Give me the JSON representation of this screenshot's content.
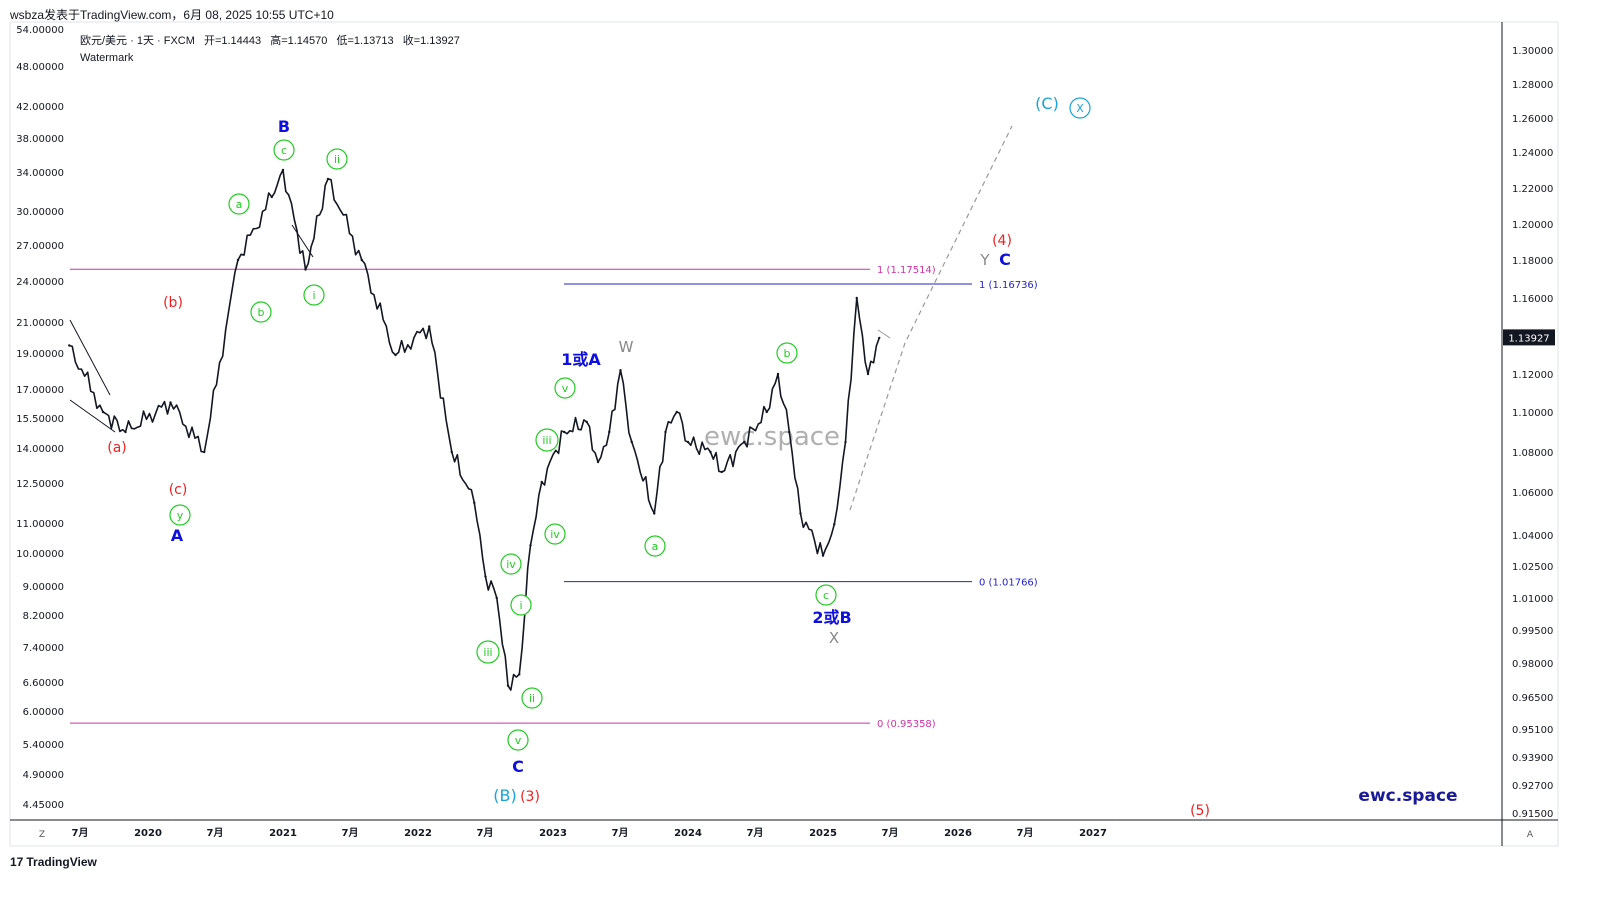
{
  "header": {
    "publisher": "wsbza发表于TradingView.com，6月 08, 2025 10:55 UTC+10"
  },
  "legend": {
    "symbol": "欧元/美元 · 1天 · FXCM",
    "open": "开=1.14443",
    "high": "高=1.14570",
    "low": "低=1.13713",
    "close": "收=1.13927",
    "study": "Watermark"
  },
  "watermark": "ewc.space",
  "brand": "ewc.space",
  "footer": {
    "logo": "17",
    "text": "TradingView"
  },
  "price_label": "1.13927",
  "colors": {
    "candle": "#131722",
    "magenta_line": "#cc33aa",
    "blue_line": "#2222cc",
    "green_wave": "#22cc22",
    "red_wave": "#ee2222",
    "blue_wave": "#1010dd",
    "cyan_wave": "#1aa3d6",
    "gray_wave": "#888888"
  },
  "chart_data": {
    "type": "line",
    "title": "欧元/美元 · 1天 · FXCM",
    "left_axis_ticks": [
      "54.00000",
      "48.00000",
      "42.00000",
      "38.00000",
      "34.00000",
      "30.00000",
      "27.00000",
      "24.00000",
      "21.00000",
      "19.00000",
      "17.00000",
      "15.50000",
      "14.00000",
      "12.50000",
      "11.00000",
      "10.00000",
      "9.00000",
      "8.20000",
      "7.40000",
      "6.60000",
      "6.00000",
      "5.40000",
      "4.90000",
      "4.45000"
    ],
    "right_axis_ticks": [
      "1.30000",
      "1.28000",
      "1.26000",
      "1.24000",
      "1.22000",
      "1.20000",
      "1.18000",
      "1.16000",
      "1.14000",
      "1.12000",
      "1.10000",
      "1.08000",
      "1.06000",
      "1.04000",
      "1.02500",
      "1.01000",
      "0.99500",
      "0.98000",
      "0.96500",
      "0.95100",
      "0.93900",
      "0.92700",
      "0.91500"
    ],
    "x_ticks": [
      "7月",
      "2020",
      "7月",
      "2021",
      "7月",
      "2022",
      "7月",
      "2023",
      "7月",
      "2024",
      "7月",
      "2025",
      "7月",
      "2026",
      "7月",
      "2027"
    ],
    "x_ticks_bold": [
      "2020",
      "2021",
      "2022",
      "2023",
      "2024",
      "2025",
      "2026",
      "2027"
    ],
    "last_close": 1.13927,
    "price_series_approx": {
      "x": [
        "2019-06",
        "2019-09",
        "2019-11",
        "2020-03",
        "2020-06",
        "2020-09",
        "2020-12",
        "2021-01",
        "2021-03",
        "2021-05",
        "2021-08",
        "2021-11",
        "2022-02",
        "2022-04",
        "2022-06",
        "2022-07",
        "2022-08",
        "2022-09",
        "2022-10",
        "2022-11",
        "2022-12",
        "2023-02",
        "2023-04",
        "2023-05",
        "2023-06",
        "2023-07",
        "2023-08",
        "2023-10",
        "2023-11",
        "2023-12",
        "2024-01",
        "2024-03",
        "2024-04",
        "2024-06",
        "2024-08",
        "2024-09",
        "2024-10",
        "2024-11",
        "2025-01",
        "2025-02",
        "2025-03",
        "2025-04",
        "2025-05",
        "2025-06"
      ],
      "y": [
        1.135,
        1.1,
        1.09,
        1.105,
        1.08,
        1.18,
        1.215,
        1.23,
        1.175,
        1.225,
        1.18,
        1.13,
        1.145,
        1.08,
        1.055,
        1.02,
        1.01,
        0.97,
        0.975,
        1.035,
        1.065,
        1.09,
        1.095,
        1.075,
        1.09,
        1.122,
        1.085,
        1.05,
        1.09,
        1.1,
        1.085,
        1.08,
        1.07,
        1.085,
        1.1,
        1.12,
        1.09,
        1.05,
        1.03,
        1.045,
        1.085,
        1.16,
        1.12,
        1.139
      ]
    },
    "horizontal_levels": [
      {
        "label": "1 (1.17514)",
        "value": 1.17514,
        "color": "#cc33aa"
      },
      {
        "label": "1 (1.16736)",
        "value": 1.16736,
        "color": "#2222cc"
      },
      {
        "label": "0 (1.01766)",
        "value": 1.01766,
        "color": "#2222cc"
      },
      {
        "label": "0 (0.95358)",
        "value": 0.95358,
        "color": "#cc33aa"
      }
    ],
    "wave_labels": [
      {
        "text": "(a)",
        "color": "red"
      },
      {
        "text": "(b)",
        "color": "red"
      },
      {
        "text": "(c)",
        "color": "red"
      },
      {
        "text": "y",
        "color": "green",
        "circle": true
      },
      {
        "text": "A",
        "color": "blue"
      },
      {
        "text": "a",
        "color": "green",
        "circle": true
      },
      {
        "text": "b",
        "color": "green",
        "circle": true
      },
      {
        "text": "c",
        "color": "green",
        "circle": true
      },
      {
        "text": "B",
        "color": "blue"
      },
      {
        "text": "ii",
        "color": "green",
        "circle": true
      },
      {
        "text": "i",
        "color": "green",
        "circle": true
      },
      {
        "text": "iv",
        "color": "green",
        "circle": true
      },
      {
        "text": "iii",
        "color": "green",
        "circle": true
      },
      {
        "text": "i",
        "color": "green",
        "circle": true
      },
      {
        "text": "ii",
        "color": "green",
        "circle": true
      },
      {
        "text": "v",
        "color": "green",
        "circle": true
      },
      {
        "text": "C",
        "color": "blue"
      },
      {
        "text": "(B)",
        "color": "cyan"
      },
      {
        "text": "(3)",
        "color": "red"
      },
      {
        "text": "iv",
        "color": "green",
        "circle": true
      },
      {
        "text": "iii",
        "color": "green",
        "circle": true
      },
      {
        "text": "v",
        "color": "green",
        "circle": true
      },
      {
        "text": "1或A",
        "color": "blue"
      },
      {
        "text": "W",
        "color": "gray"
      },
      {
        "text": "a",
        "color": "green",
        "circle": true
      },
      {
        "text": "b",
        "color": "green",
        "circle": true
      },
      {
        "text": "c",
        "color": "green",
        "circle": true
      },
      {
        "text": "2或B",
        "color": "blue"
      },
      {
        "text": "X",
        "color": "gray"
      },
      {
        "text": "Y",
        "color": "gray"
      },
      {
        "text": "C",
        "color": "blue"
      },
      {
        "text": "(4)",
        "color": "red"
      },
      {
        "text": "(C)",
        "color": "cyan"
      },
      {
        "text": "X",
        "color": "cyan",
        "circle": true
      },
      {
        "text": "(5)",
        "color": "red"
      }
    ]
  }
}
